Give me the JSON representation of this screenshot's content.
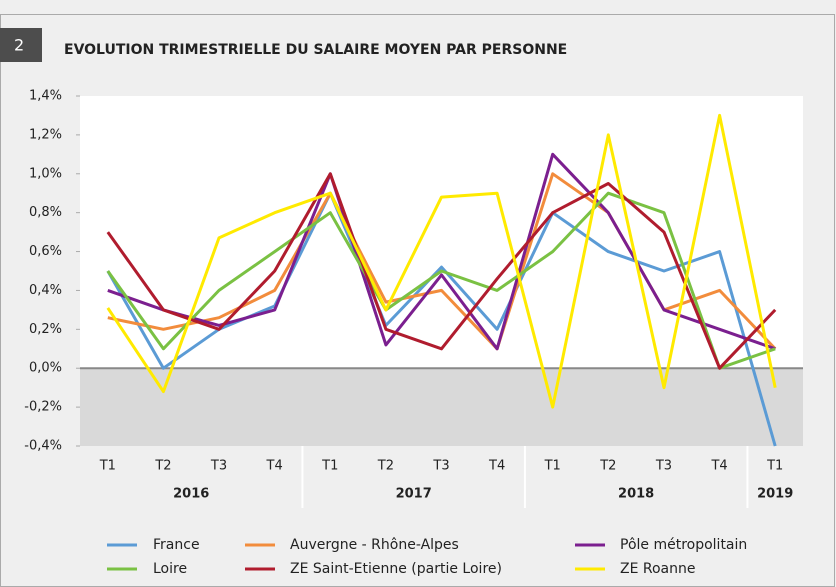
{
  "chart_data": {
    "type": "line",
    "badge": "2",
    "title": "EVOLUTION TRIMESTRIELLE DU SALAIRE MOYEN PAR PERSONNE",
    "groups": [
      {
        "label": "2016",
        "categories": [
          "T1",
          "T2",
          "T3",
          "T4"
        ]
      },
      {
        "label": "2017",
        "categories": [
          "T1",
          "T2",
          "T3",
          "T4"
        ]
      },
      {
        "label": "2018",
        "categories": [
          "T1",
          "T2",
          "T3",
          "T4"
        ]
      },
      {
        "label": "2019",
        "categories": [
          "T1"
        ]
      }
    ],
    "series": [
      {
        "name": "France",
        "color": "#5b9bd5",
        "values": [
          0.5,
          0.0,
          0.2,
          0.32,
          0.9,
          0.22,
          0.52,
          0.2,
          0.8,
          0.6,
          0.5,
          0.6,
          -0.4
        ]
      },
      {
        "name": "Auvergne - Rhône-Alpes",
        "color": "#f28c3c",
        "values": [
          0.26,
          0.2,
          0.26,
          0.4,
          0.9,
          0.34,
          0.4,
          0.1,
          1.0,
          0.8,
          0.3,
          0.4,
          0.1
        ]
      },
      {
        "name": "Pôle métropolitain",
        "color": "#7b1f8f",
        "values": [
          0.4,
          0.3,
          0.22,
          0.3,
          1.0,
          0.12,
          0.48,
          0.1,
          1.1,
          0.8,
          0.3,
          0.2,
          0.1
        ]
      },
      {
        "name": "Loire",
        "color": "#7ac143",
        "values": [
          0.5,
          0.1,
          0.4,
          0.6,
          0.8,
          0.3,
          0.5,
          0.4,
          0.6,
          0.9,
          0.8,
          0.0,
          0.1
        ]
      },
      {
        "name": "ZE Saint-Etienne (partie Loire)",
        "color": "#b01c2e",
        "values": [
          0.7,
          0.3,
          0.2,
          0.5,
          1.0,
          0.2,
          0.1,
          0.46,
          0.8,
          0.95,
          0.7,
          0.0,
          0.3
        ]
      },
      {
        "name": "ZE Roanne",
        "color": "#ffea00",
        "values": [
          0.31,
          -0.12,
          0.67,
          0.8,
          0.9,
          0.3,
          0.88,
          0.9,
          -0.2,
          1.2,
          -0.1,
          1.3,
          -0.1
        ]
      }
    ],
    "ylim": [
      -0.4,
      1.4
    ],
    "yticks": [
      {
        "value": -0.4,
        "label": "-0,4%"
      },
      {
        "value": -0.2,
        "label": "-0,2%"
      },
      {
        "value": 0,
        "label": "0,0%"
      },
      {
        "value": 0.2,
        "label": "0,2%"
      },
      {
        "value": 0.4,
        "label": "0,4%"
      },
      {
        "value": 0.6,
        "label": "0,6%"
      },
      {
        "value": 0.8,
        "label": "0,8%"
      },
      {
        "value": 1.0,
        "label": "1,0%"
      },
      {
        "value": 1.2,
        "label": "1,2%"
      },
      {
        "value": 1.4,
        "label": "1,4%"
      }
    ],
    "grid": false,
    "legend": "bottom"
  }
}
